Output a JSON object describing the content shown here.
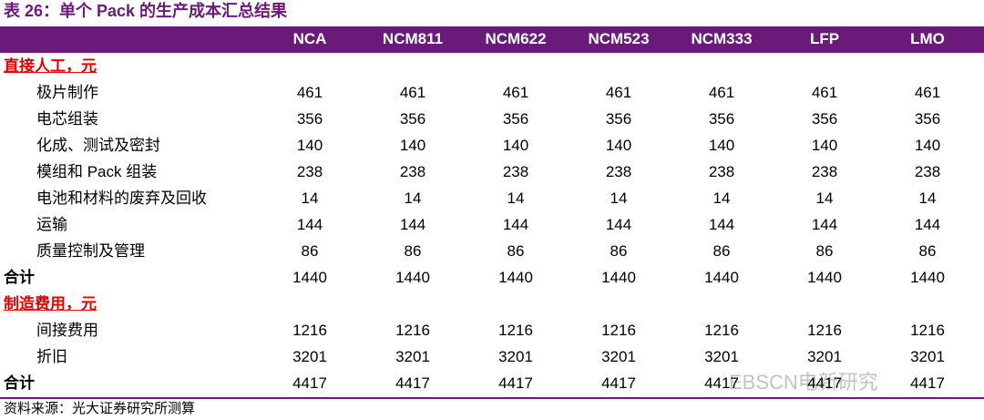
{
  "header": {
    "title": "表 26：单个 Pack 的生产成本汇总结果"
  },
  "table": {
    "columns": [
      "NCA",
      "NCM811",
      "NCM622",
      "NCM523",
      "NCM333",
      "LFP",
      "LMO"
    ],
    "sections": [
      {
        "title": "直接人工，元",
        "rows": [
          {
            "label": "极片制作",
            "values": [
              461,
              461,
              461,
              461,
              461,
              461,
              461
            ]
          },
          {
            "label": "电芯组装",
            "values": [
              356,
              356,
              356,
              356,
              356,
              356,
              356
            ]
          },
          {
            "label": "化成、测试及密封",
            "values": [
              140,
              140,
              140,
              140,
              140,
              140,
              140
            ]
          },
          {
            "label": "模组和 Pack 组装",
            "values": [
              238,
              238,
              238,
              238,
              238,
              238,
              238
            ]
          },
          {
            "label": "电池和材料的废弃及回收",
            "values": [
              14,
              14,
              14,
              14,
              14,
              14,
              14
            ]
          },
          {
            "label": "运输",
            "values": [
              144,
              144,
              144,
              144,
              144,
              144,
              144
            ]
          },
          {
            "label": "质量控制及管理",
            "values": [
              86,
              86,
              86,
              86,
              86,
              86,
              86
            ]
          }
        ],
        "total": {
          "label": "合计",
          "values": [
            1440,
            1440,
            1440,
            1440,
            1440,
            1440,
            1440
          ]
        }
      },
      {
        "title": "制造费用，元",
        "rows": [
          {
            "label": "间接费用",
            "values": [
              1216,
              1216,
              1216,
              1216,
              1216,
              1216,
              1216
            ]
          },
          {
            "label": "折旧",
            "values": [
              3201,
              3201,
              3201,
              3201,
              3201,
              3201,
              3201
            ]
          }
        ],
        "total": {
          "label": "合计",
          "values": [
            4417,
            4417,
            4417,
            4417,
            4417,
            4417,
            4417
          ]
        }
      }
    ]
  },
  "footer": {
    "source": "资料来源：光大证券研究所测算"
  },
  "watermark": "EBSCN电新研究"
}
